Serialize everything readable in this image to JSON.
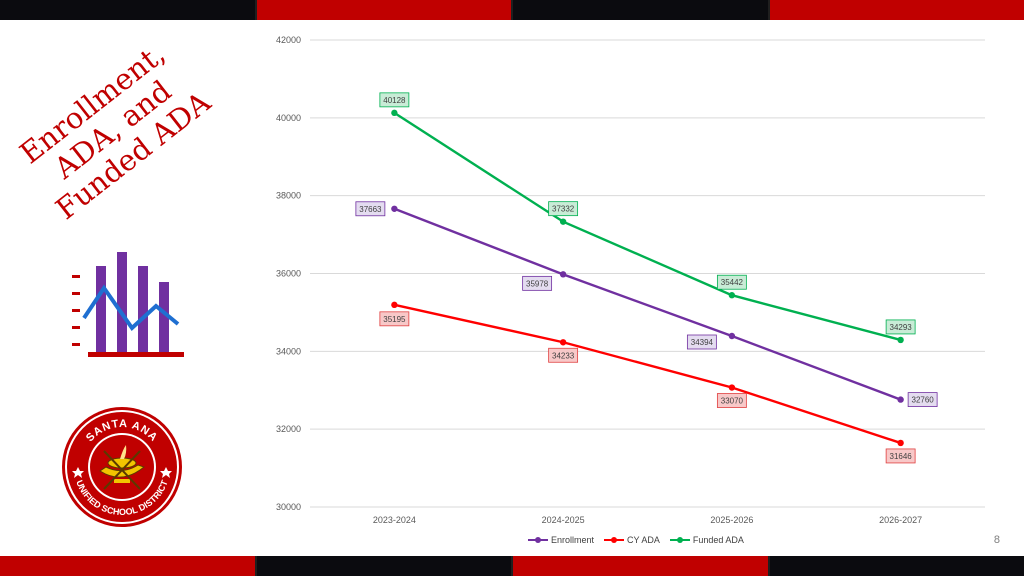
{
  "slide": {
    "title_lines": [
      "Enrollment,",
      "ADA, and",
      "Funded ADA"
    ],
    "page_number": "8",
    "colors": {
      "accent_red": "#c00000",
      "band_dark": "#0b0b0f"
    }
  },
  "icons": {
    "chart_icon": "bar-line-chart-icon",
    "logo": "santa-ana-usd-logo"
  },
  "logo": {
    "text_top": "SANTA ANA",
    "text_bottom": "UNIFIED SCHOOL DISTRICT"
  },
  "chart_data": {
    "type": "line",
    "categories": [
      "2023-2024",
      "2024-2025",
      "2025-2026",
      "2026-2027"
    ],
    "ylim": [
      30000,
      42000
    ],
    "yticks": [
      30000,
      32000,
      34000,
      36000,
      38000,
      40000,
      42000
    ],
    "grid": true,
    "legend_position": "bottom",
    "series": [
      {
        "name": "Enrollment",
        "values": [
          37663,
          35978,
          34394,
          32760
        ],
        "color": "#7030a0",
        "label_bg": "#e4dcf0",
        "label_border": "#7030a0"
      },
      {
        "name": "CY ADA",
        "values": [
          35195,
          34233,
          33070,
          31646
        ],
        "color": "#ff0000",
        "label_bg": "#f8c8c8",
        "label_border": "#e04040"
      },
      {
        "name": "Funded ADA",
        "values": [
          40128,
          37332,
          35442,
          34293
        ],
        "color": "#00b050",
        "label_bg": "#c8ecd6",
        "label_border": "#00b050"
      }
    ]
  }
}
